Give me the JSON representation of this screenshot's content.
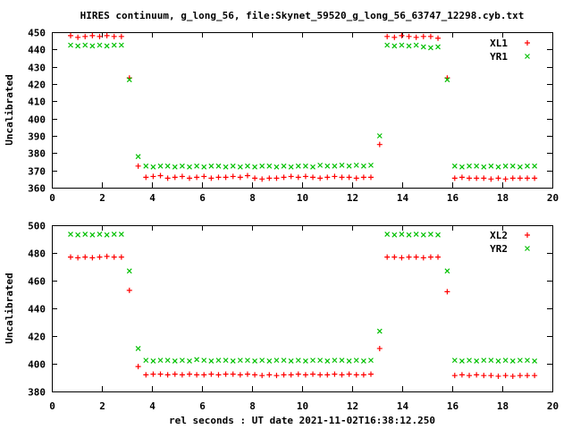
{
  "title": "HIRES continuum, g_long_56, file:Skynet_59520_g_long_56_63747_12298.cyb.txt",
  "xlabel": "rel seconds : UT date 2021-11-02T16:38:12.250",
  "colors": {
    "xl": "#ff0000",
    "yr": "#00c000",
    "axis": "#000000",
    "background": "#ffffff"
  },
  "chart_data": [
    {
      "type": "scatter",
      "ylabel": "Uncalibrated",
      "xlim": [
        0,
        20
      ],
      "ylim": [
        360,
        450
      ],
      "xticks": [
        0,
        2,
        4,
        6,
        8,
        10,
        12,
        14,
        16,
        18,
        20
      ],
      "yticks": [
        360,
        370,
        380,
        390,
        400,
        410,
        420,
        430,
        440,
        450
      ],
      "legend_position": "top-right",
      "grid": false,
      "x": [
        0.75,
        1.04,
        1.33,
        1.62,
        1.91,
        2.2,
        2.49,
        2.78,
        3.1,
        3.45,
        3.76,
        4.05,
        4.34,
        4.63,
        4.92,
        5.21,
        5.5,
        5.79,
        6.08,
        6.37,
        6.66,
        6.95,
        7.24,
        7.53,
        7.82,
        8.11,
        8.4,
        8.69,
        8.98,
        9.27,
        9.56,
        9.85,
        10.14,
        10.43,
        10.72,
        11.01,
        11.3,
        11.59,
        11.88,
        12.17,
        12.46,
        12.75,
        13.1,
        13.4,
        13.69,
        13.98,
        14.27,
        14.56,
        14.85,
        15.14,
        15.43,
        15.8,
        16.1,
        16.39,
        16.68,
        16.97,
        17.26,
        17.55,
        17.84,
        18.13,
        18.42,
        18.71,
        19.0,
        19.29
      ],
      "series": [
        {
          "name": "XL1",
          "marker": "plus",
          "color": "#ff0000",
          "y": [
            448,
            447,
            447.5,
            448,
            447.5,
            448,
            447.5,
            447.5,
            423.5,
            372.5,
            366,
            366.5,
            367,
            365.5,
            366,
            366.5,
            365.5,
            366,
            366.5,
            365.5,
            366,
            366,
            366.5,
            366,
            367,
            365.5,
            365,
            365.5,
            365.5,
            366,
            366.5,
            366,
            366.5,
            366,
            365.5,
            366,
            366.5,
            366,
            366,
            365.5,
            366,
            366,
            385,
            447.5,
            447,
            448,
            447.5,
            447,
            447.5,
            447.5,
            446.5,
            423.5,
            365.5,
            366,
            365.5,
            365.5,
            365.5,
            365,
            365.5,
            365,
            365.5,
            365.5,
            365.5,
            365.5
          ]
        },
        {
          "name": "YR1",
          "marker": "cross",
          "color": "#00c000",
          "y": [
            442.5,
            442,
            442.5,
            442,
            442.5,
            442,
            442.5,
            442.5,
            422.5,
            378,
            372.5,
            372,
            372.5,
            372.5,
            372,
            372.5,
            372,
            372.5,
            372,
            372.5,
            372.5,
            372,
            372.5,
            372,
            372.5,
            372,
            372.5,
            372.5,
            372,
            372.5,
            372,
            372.5,
            372.5,
            372,
            373,
            372.5,
            372.5,
            373,
            372.5,
            373,
            372.5,
            373,
            390,
            442.5,
            442,
            442.5,
            442,
            442.5,
            441.5,
            441,
            441.5,
            422.5,
            372.5,
            372,
            372.5,
            372.5,
            372,
            372.5,
            372,
            372.5,
            372.5,
            372,
            372.5,
            372.5
          ]
        }
      ]
    },
    {
      "type": "scatter",
      "ylabel": "Uncalibrated",
      "xlim": [
        0,
        20
      ],
      "ylim": [
        380,
        500
      ],
      "xticks": [
        0,
        2,
        4,
        6,
        8,
        10,
        12,
        14,
        16,
        18,
        20
      ],
      "yticks": [
        380,
        400,
        420,
        440,
        460,
        480,
        500
      ],
      "legend_position": "top-right",
      "grid": false,
      "x": [
        0.75,
        1.04,
        1.33,
        1.62,
        1.91,
        2.2,
        2.49,
        2.78,
        3.1,
        3.45,
        3.76,
        4.05,
        4.34,
        4.63,
        4.92,
        5.21,
        5.5,
        5.79,
        6.08,
        6.37,
        6.66,
        6.95,
        7.24,
        7.53,
        7.82,
        8.11,
        8.4,
        8.69,
        8.98,
        9.27,
        9.56,
        9.85,
        10.14,
        10.43,
        10.72,
        11.01,
        11.3,
        11.59,
        11.88,
        12.17,
        12.46,
        12.75,
        13.1,
        13.4,
        13.69,
        13.98,
        14.27,
        14.56,
        14.85,
        15.14,
        15.43,
        15.8,
        16.1,
        16.39,
        16.68,
        16.97,
        17.26,
        17.55,
        17.84,
        18.13,
        18.42,
        18.71,
        19.0,
        19.29
      ],
      "series": [
        {
          "name": "XL2",
          "marker": "plus",
          "color": "#ff0000",
          "y": [
            477,
            476.5,
            477,
            476.5,
            477,
            477.5,
            477,
            477,
            453,
            398,
            392,
            392.5,
            392.5,
            392,
            392.5,
            392,
            392.5,
            392,
            392,
            392.5,
            392,
            392.5,
            392.5,
            392,
            392.5,
            392,
            391.5,
            392,
            391.5,
            392,
            392,
            392.5,
            392,
            392.5,
            392,
            392,
            392.5,
            392,
            392.5,
            392,
            392,
            392.5,
            411,
            477,
            477,
            476.5,
            477,
            477,
            476.5,
            477,
            477,
            452,
            391.5,
            392,
            391.5,
            392,
            391.5,
            391.5,
            391,
            391.5,
            391,
            391.5,
            391.5,
            391.5
          ]
        },
        {
          "name": "YR2",
          "marker": "cross",
          "color": "#00c000",
          "y": [
            493.5,
            493,
            493.5,
            493,
            493.5,
            493,
            493.5,
            493.5,
            467,
            411,
            402.5,
            402,
            402.5,
            402.5,
            402,
            402.5,
            402,
            403,
            402.5,
            402,
            402.5,
            402.5,
            402,
            402.5,
            402.5,
            402,
            402.5,
            402,
            402.5,
            402.5,
            402,
            402.5,
            402,
            402.5,
            402.5,
            402,
            402.5,
            402.5,
            402,
            402.5,
            402,
            402.5,
            423.5,
            493.5,
            493,
            493.5,
            493,
            493.5,
            493,
            493.5,
            493,
            467,
            402.5,
            402,
            402.5,
            402,
            402.5,
            402.5,
            402,
            402.5,
            402,
            402.5,
            402.5,
            402
          ]
        }
      ]
    }
  ]
}
